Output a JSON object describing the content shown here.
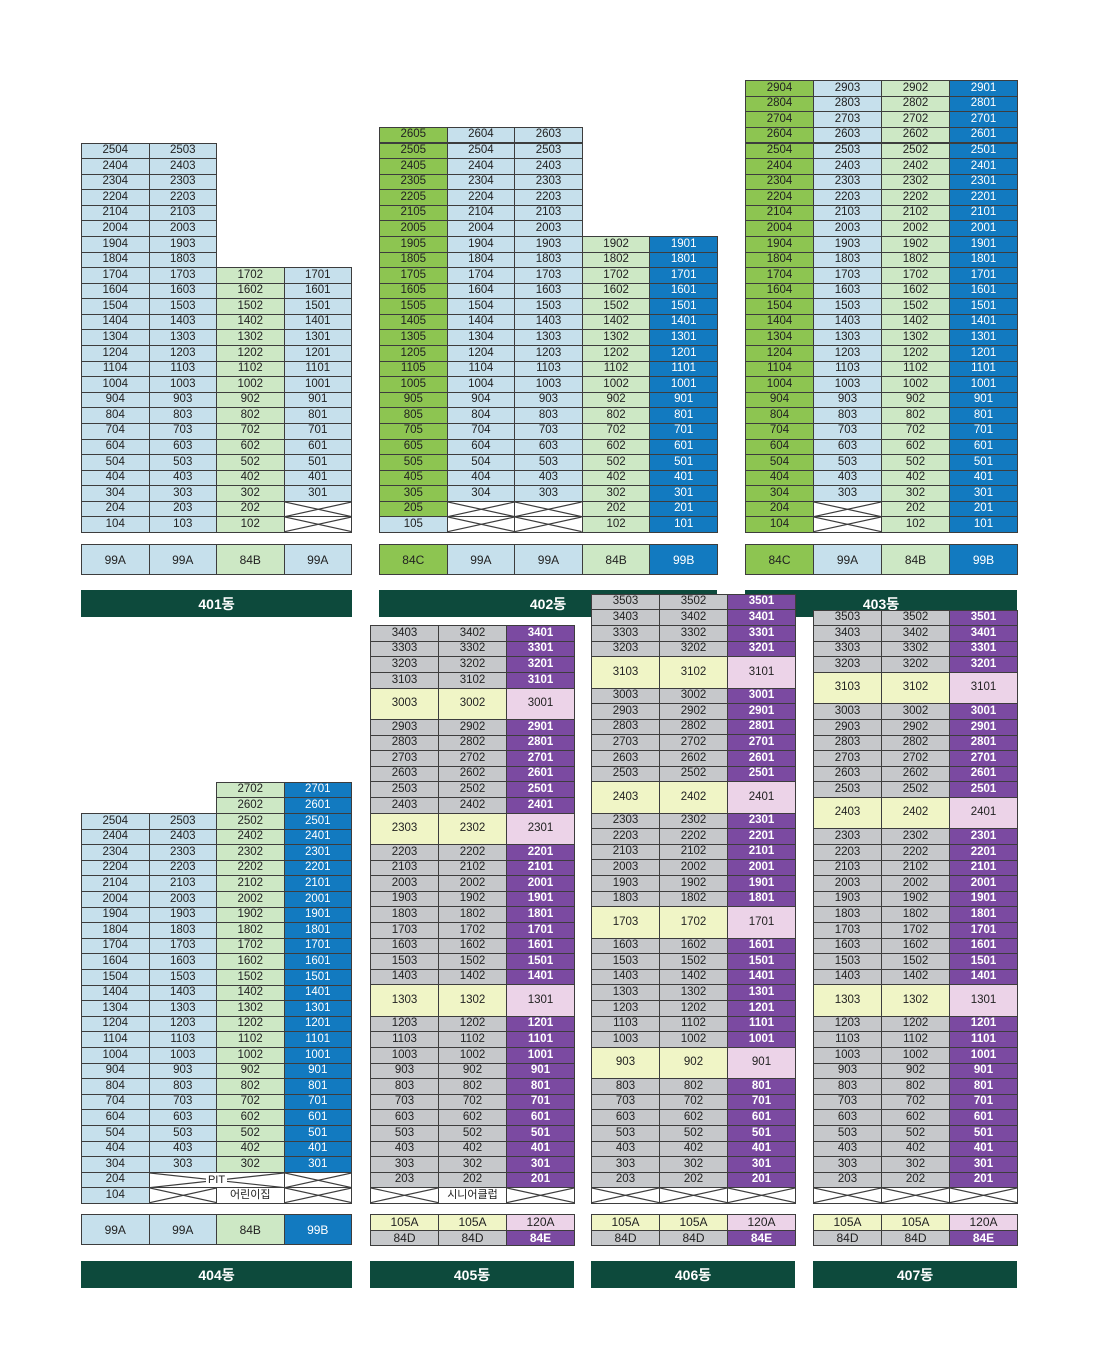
{
  "colors": {
    "lb": "#c6e0ec",
    "lg": "#cde8c5",
    "gr": "#8dc551",
    "bl": "#127ac0",
    "gy": "#c6c8cb",
    "yl": "#f0f5c6",
    "pk": "#ecd3e8",
    "pu": "#7b4aa1",
    "wh": "#ffffff"
  },
  "buildings": [
    {
      "name": "401동",
      "columns": [
        {
          "top": 25,
          "bottom": 1,
          "suffix": "04",
          "color": "lb"
        },
        {
          "top": 25,
          "bottom": 1,
          "suffix": "03",
          "color": "lb"
        },
        {
          "top": 17,
          "bottom": 1,
          "suffix": "02",
          "color": "lg"
        },
        {
          "top": 17,
          "bottom": 2,
          "suffix": "01",
          "color": "lb"
        }
      ],
      "crossed": [
        {
          "col": 3,
          "floor": 1
        },
        {
          "col": 3,
          "floor": 2
        }
      ],
      "types": [
        {
          "label": "99A",
          "color": "lb"
        },
        {
          "label": "99A",
          "color": "lb"
        },
        {
          "label": "84B",
          "color": "lg"
        },
        {
          "label": "99A",
          "color": "lb"
        }
      ]
    },
    {
      "name": "402동",
      "columns": [
        {
          "top": 26,
          "bottom": 1,
          "suffix": "05",
          "color": "gr",
          "colorBelow": "lb",
          "belowFrom": 2
        },
        {
          "top": 26,
          "bottom": 3,
          "suffix": "04",
          "color": "lb"
        },
        {
          "top": 26,
          "bottom": 3,
          "suffix": "03",
          "color": "lb"
        },
        {
          "top": 19,
          "bottom": 1,
          "suffix": "02",
          "color": "lg"
        },
        {
          "top": 19,
          "bottom": 1,
          "suffix": "01",
          "color": "bl"
        }
      ],
      "crossed": [
        {
          "col": 1,
          "floor": 1
        },
        {
          "col": 1,
          "floor": 2
        },
        {
          "col": 2,
          "floor": 1
        },
        {
          "col": 2,
          "floor": 2
        }
      ],
      "overrides": [
        {
          "col": 0,
          "floor": 2,
          "color": "gr"
        },
        {
          "col": 0,
          "floor": 1,
          "color": "lb"
        }
      ],
      "types": [
        {
          "label": "84C",
          "color": "gr"
        },
        {
          "label": "99A",
          "color": "lb"
        },
        {
          "label": "99A",
          "color": "lb"
        },
        {
          "label": "84B",
          "color": "lg"
        },
        {
          "label": "99B",
          "color": "bl"
        }
      ]
    },
    {
      "name": "403동",
      "columns": [
        {
          "top": 29,
          "bottom": 1,
          "suffix": "04",
          "color": "gr"
        },
        {
          "top": 29,
          "bottom": 3,
          "suffix": "03",
          "color": "lb"
        },
        {
          "top": 29,
          "bottom": 1,
          "suffix": "02",
          "color": "lg"
        },
        {
          "top": 29,
          "bottom": 1,
          "suffix": "01",
          "color": "bl"
        }
      ],
      "crossed": [
        {
          "col": 1,
          "floor": 1
        },
        {
          "col": 1,
          "floor": 2
        }
      ],
      "types": [
        {
          "label": "84C",
          "color": "gr"
        },
        {
          "label": "99A",
          "color": "lb"
        },
        {
          "label": "84B",
          "color": "lg"
        },
        {
          "label": "99B",
          "color": "bl"
        }
      ]
    },
    {
      "name": "404동",
      "columns": [
        {
          "top": 25,
          "bottom": 1,
          "suffix": "04",
          "color": "lb"
        },
        {
          "top": 25,
          "bottom": 3,
          "suffix": "03",
          "color": "lb"
        },
        {
          "top": 27,
          "bottom": 3,
          "suffix": "02",
          "color": "lg"
        },
        {
          "top": 27,
          "bottom": 3,
          "suffix": "01",
          "color": "bl"
        }
      ],
      "crossed": [
        {
          "col": 1,
          "floor": 1
        },
        {
          "col": 3,
          "floor": 1
        },
        {
          "col": 3,
          "floor": 2
        }
      ],
      "labels": [
        {
          "col": 1,
          "span": 2,
          "floor": 2,
          "text": "PIT",
          "crossed": true
        },
        {
          "col": 2,
          "span": 1,
          "floor": 1,
          "text": "어린이집",
          "crossed": false
        }
      ],
      "types": [
        {
          "label": "99A",
          "color": "lb"
        },
        {
          "label": "99A",
          "color": "lb"
        },
        {
          "label": "84B",
          "color": "lg"
        },
        {
          "label": "99B",
          "color": "bl"
        }
      ]
    },
    {
      "name": "405동",
      "columns": [
        {
          "top": 34,
          "bottom": 2,
          "suffix": "03",
          "color": "gy"
        },
        {
          "top": 34,
          "bottom": 2,
          "suffix": "02",
          "color": "gy"
        },
        {
          "top": 34,
          "bottom": 2,
          "suffix": "01",
          "color": "pu"
        }
      ],
      "tall": [
        30,
        23,
        13
      ],
      "crossed": [
        {
          "col": 0,
          "floor": 1
        },
        {
          "col": 2,
          "floor": 1
        }
      ],
      "labels": [
        {
          "col": 1,
          "span": 1,
          "floor": 1,
          "text": "시니어클럽",
          "crossed": false
        }
      ],
      "types": [
        {
          "label": "105A",
          "label2": "84D",
          "color": "yl",
          "color2": "gy"
        },
        {
          "label": "105A",
          "label2": "84D",
          "color": "yl",
          "color2": "gy"
        },
        {
          "label": "120A",
          "label2": "84E",
          "color": "pk",
          "color2": "pu"
        }
      ]
    },
    {
      "name": "406동",
      "columns": [
        {
          "top": 35,
          "bottom": 2,
          "suffix": "03",
          "color": "gy"
        },
        {
          "top": 35,
          "bottom": 2,
          "suffix": "02",
          "color": "gy"
        },
        {
          "top": 35,
          "bottom": 2,
          "suffix": "01",
          "color": "pu"
        }
      ],
      "tall": [
        31,
        24,
        17,
        9
      ],
      "crossed": [
        {
          "col": 0,
          "floor": 1
        },
        {
          "col": 1,
          "floor": 1
        },
        {
          "col": 2,
          "floor": 1
        }
      ],
      "types": [
        {
          "label": "105A",
          "label2": "84D",
          "color": "yl",
          "color2": "gy"
        },
        {
          "label": "105A",
          "label2": "84D",
          "color": "yl",
          "color2": "gy"
        },
        {
          "label": "120A",
          "label2": "84E",
          "color": "pk",
          "color2": "pu"
        }
      ]
    },
    {
      "name": "407동",
      "columns": [
        {
          "top": 35,
          "bottom": 2,
          "suffix": "03",
          "color": "gy"
        },
        {
          "top": 35,
          "bottom": 2,
          "suffix": "02",
          "color": "gy"
        },
        {
          "top": 35,
          "bottom": 2,
          "suffix": "01",
          "color": "pu"
        }
      ],
      "tall": [
        31,
        24,
        13
      ],
      "crossed": [
        {
          "col": 0,
          "floor": 1
        },
        {
          "col": 1,
          "floor": 1
        },
        {
          "col": 2,
          "floor": 1
        }
      ],
      "types": [
        {
          "label": "105A",
          "label2": "84D",
          "color": "yl",
          "color2": "gy"
        },
        {
          "label": "105A",
          "label2": "84D",
          "color": "yl",
          "color2": "gy"
        },
        {
          "label": "120A",
          "label2": "84E",
          "color": "pk",
          "color2": "pu"
        }
      ]
    }
  ]
}
